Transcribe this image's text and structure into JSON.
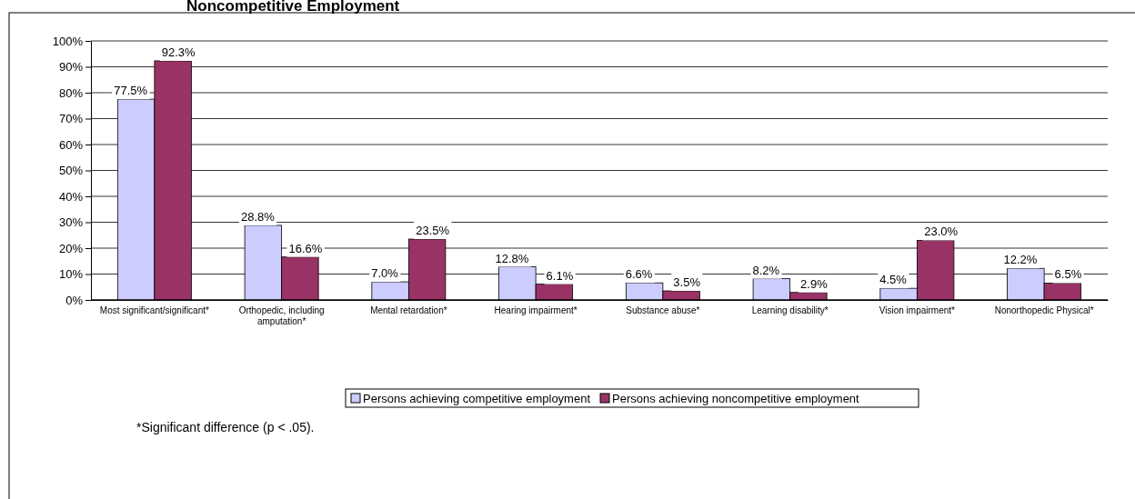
{
  "chart_data": {
    "type": "bar",
    "title": "Noncompetitive Employment",
    "categories": [
      "Most significant/significant*",
      "Orthopedic, including amputation*",
      "Mental retardation*",
      "Hearing impairment*",
      "Substance abuse*",
      "Learning disability*",
      "Vision impairment*",
      "Nonorthopedic Physical*"
    ],
    "series": [
      {
        "name": "Persons achieving competitive employment",
        "color": "#ccccff",
        "values": [
          77.5,
          28.8,
          7.0,
          12.8,
          6.6,
          8.2,
          4.5,
          12.2
        ]
      },
      {
        "name": "Persons achieving noncompetitive employment",
        "color": "#993366",
        "values": [
          92.3,
          16.6,
          23.5,
          6.1,
          3.5,
          2.9,
          23.0,
          6.5
        ]
      }
    ],
    "ylim": [
      0,
      100
    ],
    "yticks": [
      {
        "value": 0,
        "label": "0%"
      },
      {
        "value": 10,
        "label": "10%"
      },
      {
        "value": 20,
        "label": "20%"
      },
      {
        "value": 30,
        "label": "30%"
      },
      {
        "value": 40,
        "label": "40%"
      },
      {
        "value": 50,
        "label": "50%"
      },
      {
        "value": 60,
        "label": "60%"
      },
      {
        "value": 70,
        "label": "70%"
      },
      {
        "value": 80,
        "label": "80%"
      },
      {
        "value": 90,
        "label": "90%"
      },
      {
        "value": 100,
        "label": "100%"
      }
    ],
    "grid": "y",
    "legend": "bottom",
    "value_labels": [
      [
        "77.5%",
        "28.8%",
        "7.0%",
        "12.8%",
        "6.6%",
        "8.2%",
        "4.5%",
        "12.2%"
      ],
      [
        "92.3%",
        "16.6%",
        "23.5%",
        "6.1%",
        "3.5%",
        "2.9%",
        "23.0%",
        "6.5%"
      ]
    ],
    "annotations": [
      "*Significant difference (p < .05)."
    ]
  }
}
